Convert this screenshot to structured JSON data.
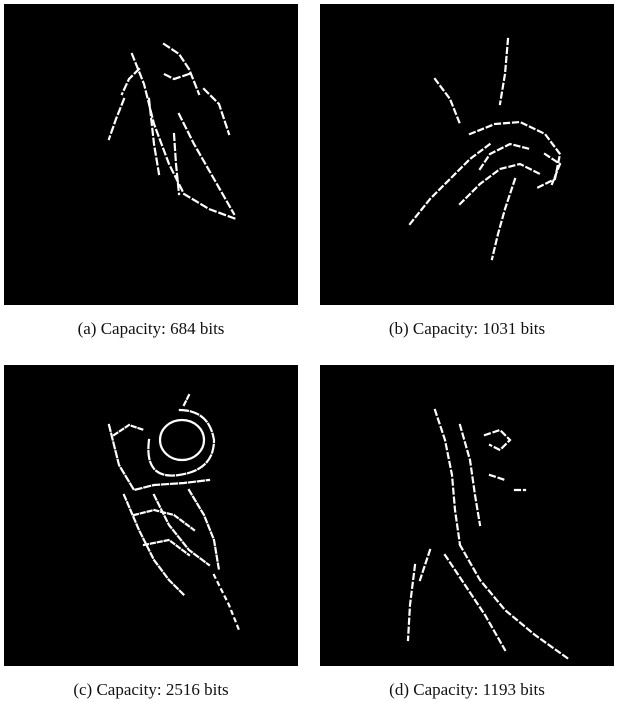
{
  "figure": {
    "panels": [
      {
        "label": "(a)",
        "caption": "Capacity: 684 bits"
      },
      {
        "label": "(b)",
        "caption": "Capacity: 1031 bits"
      },
      {
        "label": "(c)",
        "caption": "Capacity: 2516 bits"
      },
      {
        "label": "(d)",
        "caption": "Capacity: 1193 bits"
      }
    ]
  }
}
